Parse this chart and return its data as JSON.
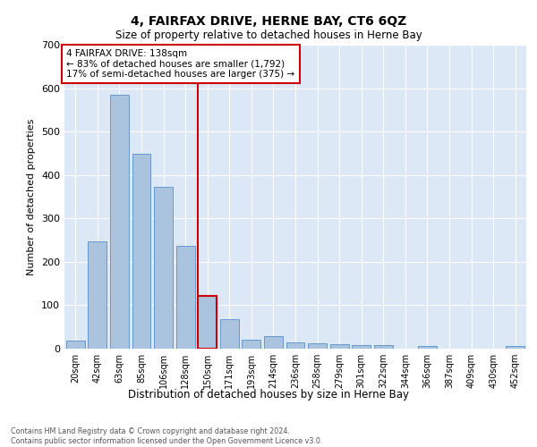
{
  "title": "4, FAIRFAX DRIVE, HERNE BAY, CT6 6QZ",
  "subtitle": "Size of property relative to detached houses in Herne Bay",
  "xlabel": "Distribution of detached houses by size in Herne Bay",
  "ylabel": "Number of detached properties",
  "footnote1": "Contains HM Land Registry data © Crown copyright and database right 2024.",
  "footnote2": "Contains public sector information licensed under the Open Government Licence v3.0.",
  "bar_labels": [
    "20sqm",
    "42sqm",
    "63sqm",
    "85sqm",
    "106sqm",
    "128sqm",
    "150sqm",
    "171sqm",
    "193sqm",
    "214sqm",
    "236sqm",
    "258sqm",
    "279sqm",
    "301sqm",
    "322sqm",
    "344sqm",
    "366sqm",
    "387sqm",
    "409sqm",
    "430sqm",
    "452sqm"
  ],
  "bar_values": [
    18,
    248,
    585,
    448,
    372,
    237,
    121,
    68,
    20,
    29,
    14,
    12,
    10,
    9,
    9,
    0,
    7,
    0,
    0,
    0,
    7
  ],
  "bar_color": "#aac4e0",
  "bar_edge_color": "#6699cc",
  "highlight_bar_index": 6,
  "highlight_color": "#cc0000",
  "annotation_text": "4 FAIRFAX DRIVE: 138sqm\n← 83% of detached houses are smaller (1,792)\n17% of semi-detached houses are larger (375) →",
  "annotation_box_edge": "#cc0000",
  "ylim": [
    0,
    700
  ],
  "yticks": [
    0,
    100,
    200,
    300,
    400,
    500,
    600,
    700
  ],
  "bg_color": "#dce8f5",
  "fig_bg": "#ffffff",
  "grid_color": "#ffffff"
}
